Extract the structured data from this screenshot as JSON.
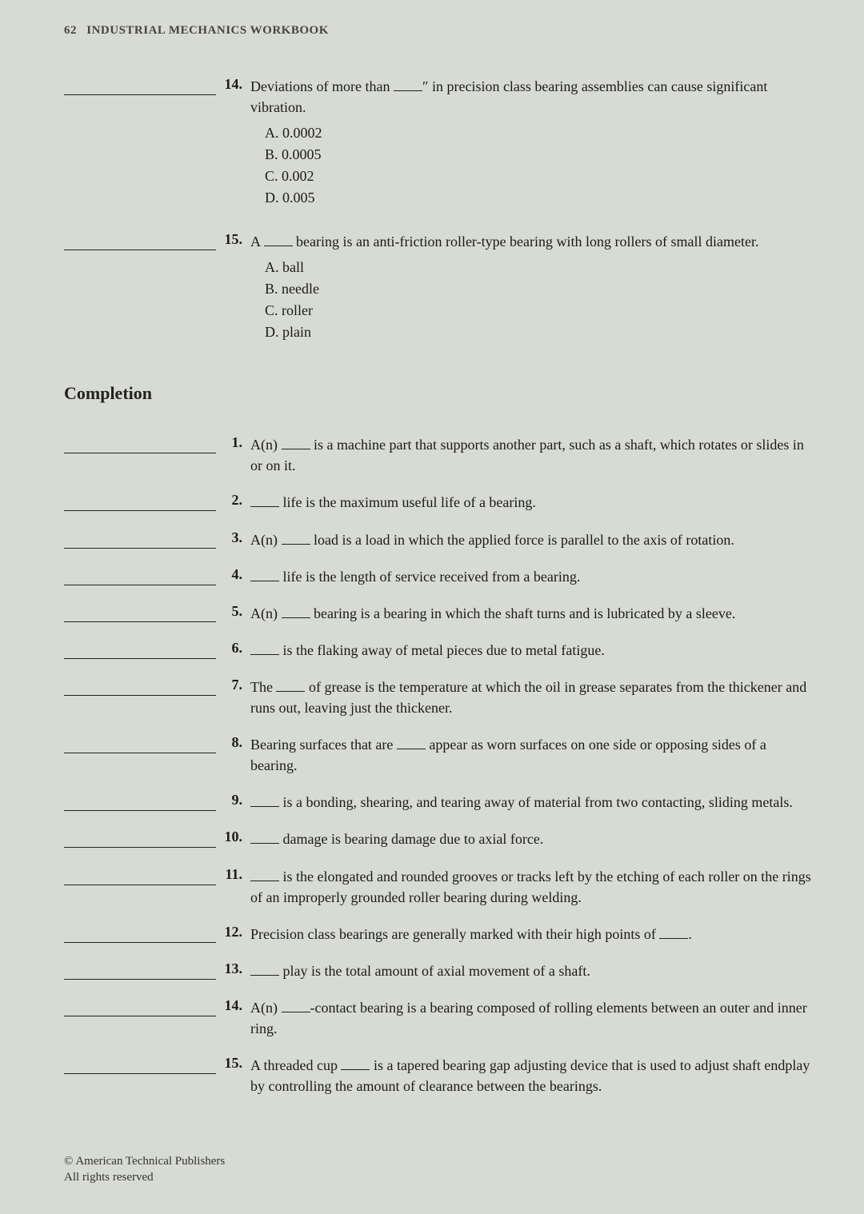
{
  "header": {
    "page_number": "62",
    "title": "INDUSTRIAL MECHANICS WORKBOOK"
  },
  "mc_questions": [
    {
      "number": "14.",
      "text_parts": [
        "Deviations of more than ",
        "″ in precision class bearing assemblies can cause significant vibration."
      ],
      "choices": [
        "A. 0.0002",
        "B. 0.0005",
        "C. 0.002",
        "D. 0.005"
      ]
    },
    {
      "number": "15.",
      "text_parts": [
        "A ",
        " bearing is an anti-friction roller-type bearing with long rollers of small diameter."
      ],
      "choices": [
        "A. ball",
        "B. needle",
        "C. roller",
        "D. plain"
      ]
    }
  ],
  "section_heading": "Completion",
  "completion_questions": [
    {
      "number": "1.",
      "parts": [
        "A(n) ",
        " is a machine part that supports another part, such as a shaft, which rotates or slides in or on it."
      ]
    },
    {
      "number": "2.",
      "parts": [
        "",
        " life is the maximum useful life of a bearing."
      ]
    },
    {
      "number": "3.",
      "parts": [
        "A(n) ",
        " load is a load in which the applied force is parallel to the axis of rotation."
      ]
    },
    {
      "number": "4.",
      "parts": [
        "",
        " life is the length of service received from a bearing."
      ]
    },
    {
      "number": "5.",
      "parts": [
        "A(n) ",
        " bearing is a bearing in which the shaft turns and is lubricated by a sleeve."
      ]
    },
    {
      "number": "6.",
      "parts": [
        "",
        " is the flaking away of metal pieces due to metal fatigue."
      ]
    },
    {
      "number": "7.",
      "parts": [
        "The ",
        " of grease is the temperature at which the oil in grease separates from the thickener and runs out, leaving just the thickener."
      ]
    },
    {
      "number": "8.",
      "parts": [
        "Bearing surfaces that are ",
        " appear as worn surfaces on one side or opposing sides of a bearing."
      ]
    },
    {
      "number": "9.",
      "parts": [
        "",
        " is a bonding, shearing, and tearing away of material from two contacting, sliding metals."
      ]
    },
    {
      "number": "10.",
      "parts": [
        "",
        " damage is bearing damage due to axial force."
      ]
    },
    {
      "number": "11.",
      "parts": [
        "",
        " is the elongated and rounded grooves or tracks left by the etching of each roller on the rings of an improperly grounded roller bearing during welding."
      ]
    },
    {
      "number": "12.",
      "parts": [
        "Precision class bearings are generally marked with their high points of ",
        "."
      ]
    },
    {
      "number": "13.",
      "parts": [
        "",
        " play is the total amount of axial movement of a shaft."
      ]
    },
    {
      "number": "14.",
      "parts": [
        "A(n) ",
        "-contact bearing is a bearing composed of rolling elements between an outer and inner ring."
      ]
    },
    {
      "number": "15.",
      "parts": [
        "A threaded cup ",
        " is a tapered bearing gap adjusting device that is used to adjust shaft endplay by controlling the amount of clearance between the bearings."
      ]
    }
  ],
  "footer": {
    "line1": "© American Technical Publishers",
    "line2": "All rights reserved"
  }
}
